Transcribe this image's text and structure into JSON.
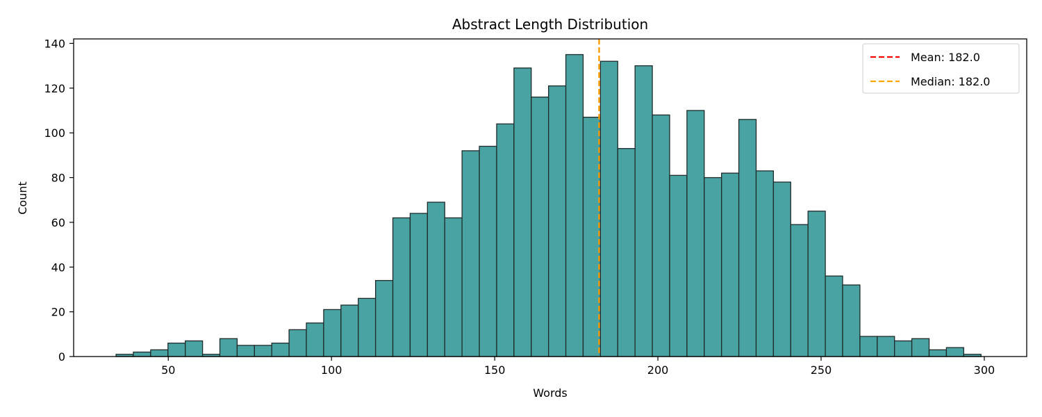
{
  "chart_data": {
    "type": "bar",
    "title": "Abstract Length Distribution",
    "xlabel": "Words",
    "ylabel": "Count",
    "xlim": [
      21,
      313
    ],
    "ylim": [
      0,
      142
    ],
    "xticks": [
      50,
      100,
      150,
      200,
      250,
      300
    ],
    "yticks": [
      0,
      20,
      40,
      60,
      80,
      100,
      120,
      140
    ],
    "bin_edges": [
      34,
      39.3,
      44.6,
      49.9,
      55.2,
      60.5,
      65.8,
      71.1,
      76.4,
      81.7,
      87,
      92.3,
      97.6,
      102.9,
      108.2,
      113.5,
      118.8,
      124.1,
      129.4,
      134.7,
      140,
      145.3,
      150.6,
      155.9,
      161.2,
      166.5,
      171.8,
      177.1,
      182.4,
      187.7,
      193,
      198.3,
      203.6,
      208.9,
      214.2,
      219.5,
      224.8,
      230.1,
      235.4,
      240.7,
      246,
      251.3,
      256.6,
      261.9,
      267.2,
      272.5,
      277.8,
      283.1,
      288.4,
      293.7,
      299
    ],
    "counts": [
      1,
      2,
      3,
      6,
      7,
      1,
      8,
      5,
      5,
      6,
      12,
      15,
      21,
      23,
      26,
      34,
      62,
      64,
      69,
      62,
      92,
      94,
      104,
      129,
      116,
      121,
      135,
      107,
      132,
      93,
      130,
      108,
      81,
      110,
      80,
      82,
      106,
      83,
      78,
      59,
      65,
      36,
      32,
      9,
      9,
      7,
      8,
      3,
      4,
      1
    ],
    "bar_color": "#4aa3a3",
    "bar_edge_color": "#1f2a2a",
    "grid": false,
    "reference_lines": [
      {
        "label": "Mean: 182.0",
        "value": 182.0,
        "color": "#ff0000",
        "style": "dashed"
      },
      {
        "label": "Median: 182.0",
        "value": 182.0,
        "color": "#ffa500",
        "style": "dashed"
      }
    ],
    "legend_position": "top-right"
  }
}
